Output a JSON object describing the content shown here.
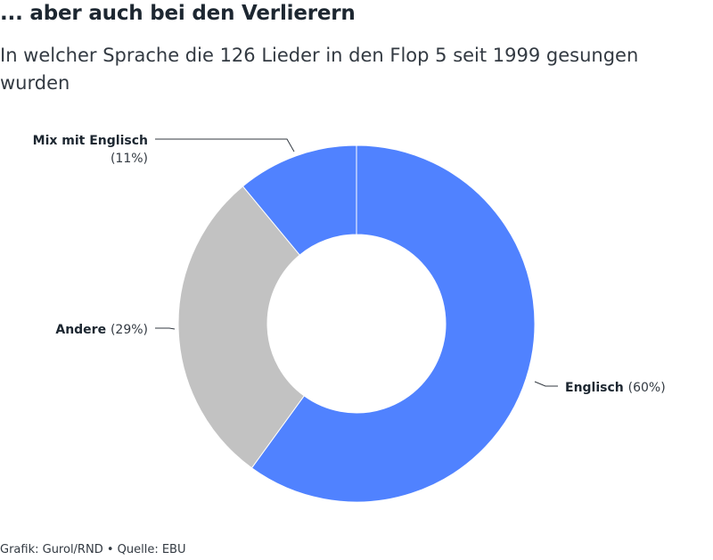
{
  "header": {
    "title": "... aber auch bei den Verlierern",
    "subtitle": "In welcher Sprache die 126 Lieder in den Flop 5 seit 1999 gesungen wurden"
  },
  "chart_data": {
    "type": "pie",
    "donut": true,
    "slices": [
      {
        "name": "Englisch",
        "value": 60,
        "value_label": "(60%)",
        "color": "#5082ff"
      },
      {
        "name": "Andere",
        "value": 29,
        "value_label": "(29%)",
        "color": "#c2c2c2"
      },
      {
        "name": "Mix mit Englisch",
        "value": 11,
        "value_label": "(11%)",
        "color": "#5082ff"
      }
    ]
  },
  "footer": {
    "source": "Grafik: Gurol/RND • Quelle: EBU"
  }
}
